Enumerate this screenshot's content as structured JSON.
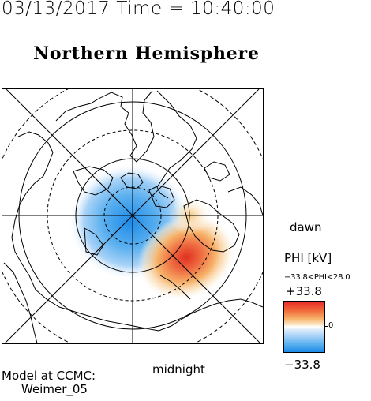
{
  "header": {
    "timestamp": "03/13/2017 Time = 10:40:00",
    "title": "Northern Hemisphere"
  },
  "map": {
    "projection": "polar (north pole centered)",
    "top_label": "",
    "right_label": "dawn",
    "bottom_label": "midnight",
    "features": [
      "coastlines",
      "latitude circles",
      "local-time radial lines",
      "potential contours"
    ]
  },
  "colorbar": {
    "title": "PHI [kV]",
    "range_text": "−33.8<PHI<28.0",
    "max_label": "+33.8",
    "min_label": "−33.8",
    "zero_label": "0",
    "colors": {
      "positive": "#e82a2a",
      "neutral": "#ffffff",
      "negative": "#1d8be8"
    }
  },
  "credit": {
    "line1": "Model at CCMC:",
    "line2": "Weimer_05"
  }
}
